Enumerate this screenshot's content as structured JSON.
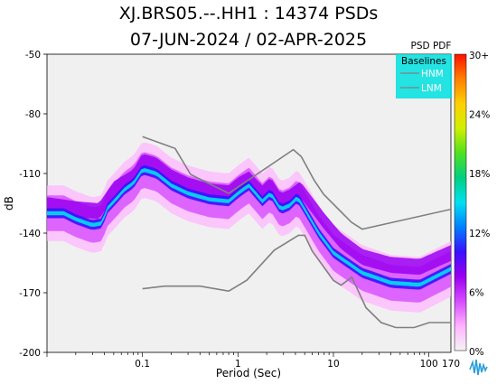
{
  "chart_data": {
    "type": "heatmap",
    "title": "XJ.BRS05.--.HH1 : 14374 PSDs",
    "subtitle": "07-JUN-2024 / 02-APR-2025",
    "xlabel": "Period (Sec)",
    "ylabel": "dB",
    "x_scale": "log",
    "xlim": [
      0.01,
      170
    ],
    "ylim": [
      -200,
      -50
    ],
    "x_ticks": [
      {
        "value": 0.1,
        "label": "0.1"
      },
      {
        "value": 1,
        "label": "1"
      },
      {
        "value": 10,
        "label": "10"
      },
      {
        "value": 100,
        "label": "100"
      },
      {
        "value": 170,
        "label": "170"
      }
    ],
    "y_ticks": [
      -50,
      -80,
      -110,
      -140,
      -170,
      -200
    ],
    "colorbar": {
      "title": "PSD PDF",
      "labels": [
        "30+",
        "24%",
        "18%",
        "12%",
        "6%",
        "0%"
      ],
      "stops": [
        "#f4f4f4",
        "#ffb3ff",
        "#d64bff",
        "#9a00f0",
        "#3a10ff",
        "#0080ff",
        "#00e0f0",
        "#00d080",
        "#50e020",
        "#d0f000",
        "#ffd000",
        "#ff8000",
        "#ff1000"
      ]
    },
    "legend": {
      "title": "Baselines",
      "placement": "top-right",
      "entries": [
        {
          "name": "HNM",
          "color": "#808080"
        },
        {
          "name": "LNM",
          "color": "#808080"
        }
      ]
    },
    "series": [
      {
        "name": "HNM",
        "points": [
          [
            0.1,
            -91.5
          ],
          [
            0.22,
            -97.4
          ],
          [
            0.32,
            -110.5
          ],
          [
            0.8,
            -120.0
          ],
          [
            3.8,
            -98.0
          ],
          [
            4.6,
            -101.5
          ],
          [
            6.3,
            -113.5
          ],
          [
            7.9,
            -120.5
          ],
          [
            15.4,
            -134.5
          ],
          [
            20,
            -138.0
          ],
          [
            170,
            -128.0
          ]
        ]
      },
      {
        "name": "LNM",
        "points": [
          [
            0.1,
            -168.0
          ],
          [
            0.17,
            -166.7
          ],
          [
            0.4,
            -166.7
          ],
          [
            0.8,
            -169.2
          ],
          [
            1.24,
            -163.7
          ],
          [
            2.4,
            -148.6
          ],
          [
            4.3,
            -141.1
          ],
          [
            5.0,
            -141.1
          ],
          [
            6.0,
            -149.0
          ],
          [
            10,
            -163.8
          ],
          [
            12,
            -166.2
          ],
          [
            15.6,
            -162.2
          ],
          [
            21.9,
            -177.5
          ],
          [
            31.6,
            -185.0
          ],
          [
            45,
            -187.5
          ],
          [
            70,
            -187.5
          ],
          [
            101,
            -185.0
          ],
          [
            154,
            -185.0
          ],
          [
            170,
            -185.0
          ]
        ]
      }
    ],
    "pdf_bands": [
      {
        "label": "main",
        "points": [
          [
            0.0105,
            -130
          ],
          [
            0.015,
            -130
          ],
          [
            0.02,
            -133
          ],
          [
            0.03,
            -136
          ],
          [
            0.038,
            -135
          ],
          [
            0.042,
            -128
          ],
          [
            0.055,
            -122
          ],
          [
            0.065,
            -118
          ],
          [
            0.08,
            -115
          ],
          [
            0.1,
            -108
          ],
          [
            0.14,
            -110
          ],
          [
            0.2,
            -116
          ],
          [
            0.3,
            -120
          ],
          [
            0.5,
            -123
          ],
          [
            0.8,
            -124
          ],
          [
            1.0,
            -120
          ],
          [
            1.3,
            -116
          ],
          [
            1.8,
            -124
          ],
          [
            2.2,
            -120
          ],
          [
            2.8,
            -128
          ],
          [
            3.5,
            -126
          ],
          [
            4.2,
            -122
          ],
          [
            5,
            -128
          ],
          [
            7,
            -140
          ],
          [
            10,
            -150
          ],
          [
            20,
            -160
          ],
          [
            40,
            -165
          ],
          [
            80,
            -166
          ],
          [
            170,
            -158
          ]
        ]
      },
      {
        "label": "upper",
        "points": [
          [
            0.0105,
            -126
          ],
          [
            0.02,
            -128
          ],
          [
            0.035,
            -129
          ],
          [
            0.05,
            -118
          ],
          [
            0.08,
            -112
          ],
          [
            0.1,
            -104
          ],
          [
            0.14,
            -106
          ],
          [
            0.2,
            -112
          ],
          [
            0.3,
            -116
          ],
          [
            0.5,
            -119
          ],
          [
            0.8,
            -120
          ],
          [
            1.0,
            -116
          ],
          [
            1.3,
            -113
          ],
          [
            1.8,
            -120
          ],
          [
            2.2,
            -116
          ],
          [
            2.8,
            -124
          ],
          [
            3.5,
            -122
          ],
          [
            4.5,
            -118
          ],
          [
            6,
            -126
          ],
          [
            8,
            -134
          ],
          [
            12,
            -144
          ],
          [
            20,
            -152
          ],
          [
            40,
            -156
          ],
          [
            80,
            -157
          ],
          [
            170,
            -150
          ]
        ]
      }
    ]
  }
}
